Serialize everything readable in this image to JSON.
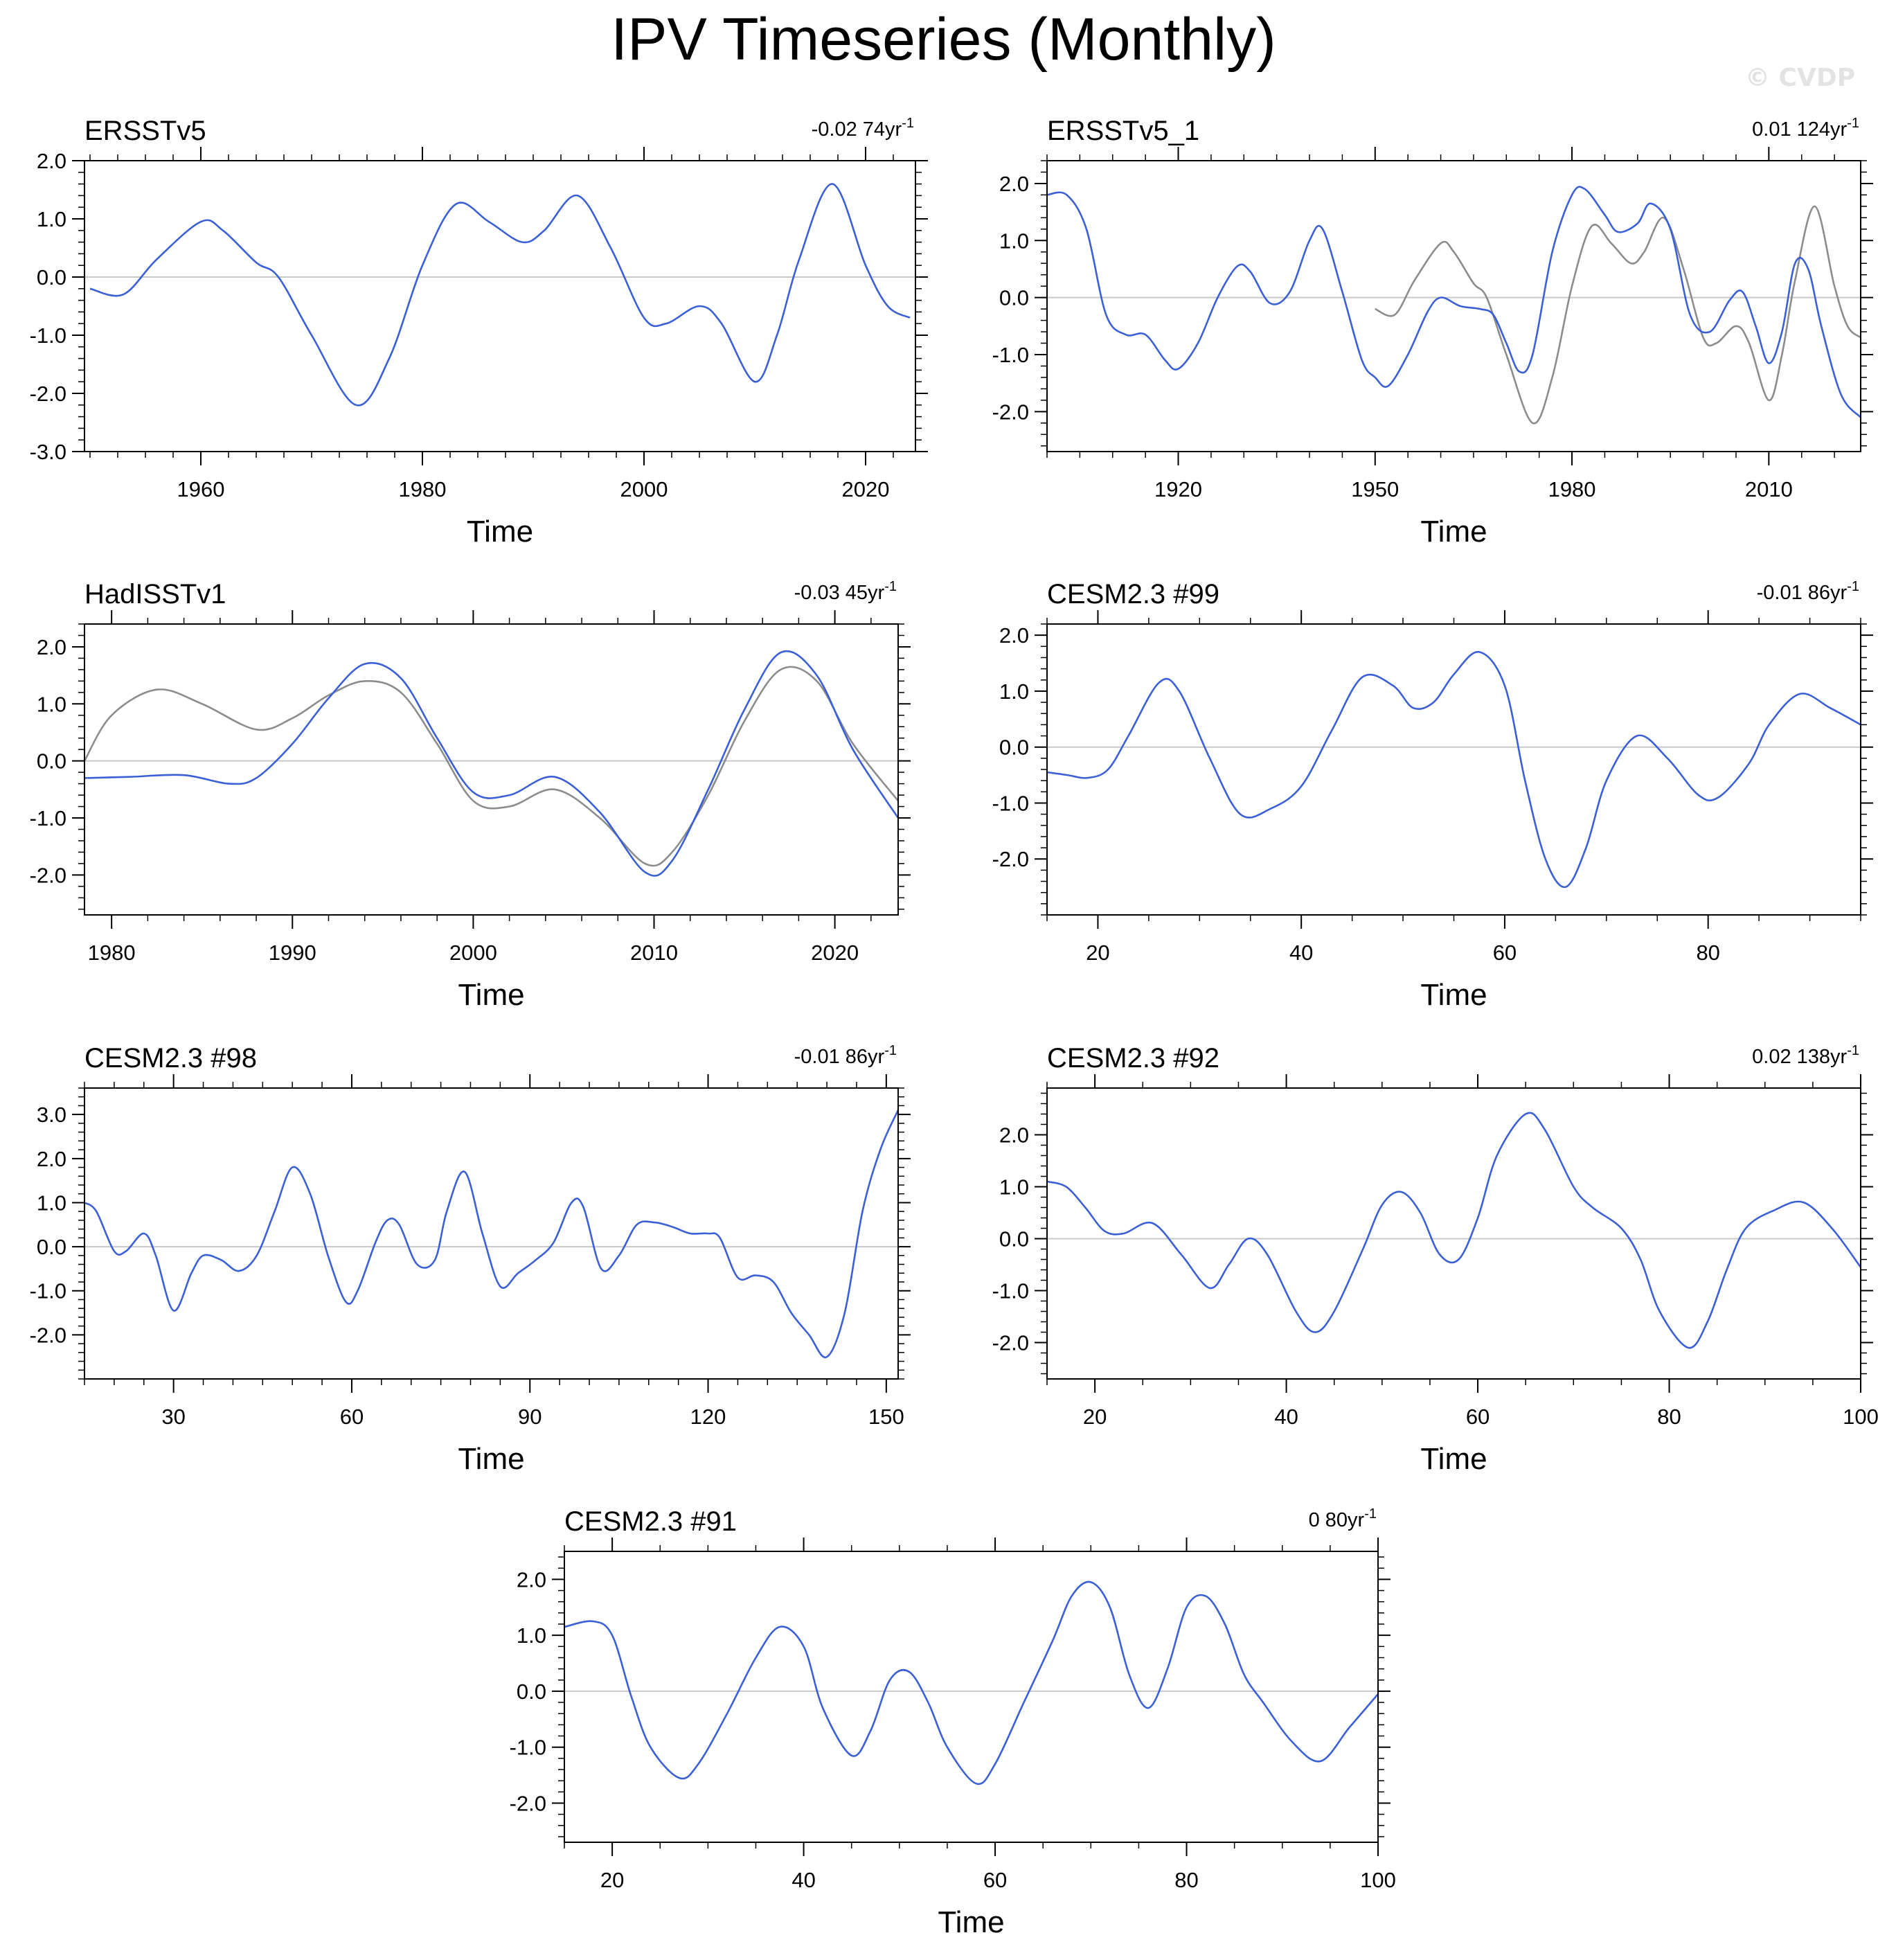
{
  "title": "IPV Timeseries (Monthly)",
  "watermark": "© CVDP",
  "colors": {
    "series": "#3b5fd6",
    "reference": "#8c8c8c",
    "zero_line": "#c8c8c8",
    "axes": "#000000"
  },
  "chart_data": [
    {
      "type": "line",
      "title": "ERSSTv5",
      "trend": "-0.02 74yr",
      "trend_sup": "-1",
      "xlabel": "Time",
      "xlim": [
        1949.5,
        2024.5
      ],
      "ylim": [
        -3.0,
        2.0
      ],
      "xticks": [
        1960,
        1980,
        2000,
        2020
      ],
      "xtick_labels": [
        "1960",
        "1980",
        "2000",
        "2020"
      ],
      "yticks": [
        -3.0,
        -2.0,
        -1.0,
        0.0,
        1.0,
        2.0
      ],
      "ytick_labels": [
        "-3.0",
        "-2.0",
        "-1.0",
        "0.0",
        "1.0",
        "2.0"
      ],
      "series": [
        {
          "role": "main",
          "x": [
            1950,
            1953,
            1956,
            1960,
            1962,
            1965,
            1967,
            1970,
            1974,
            1977,
            1980,
            1983,
            1986,
            1989,
            1991,
            1994,
            1997,
            2000,
            2002,
            2005,
            2007,
            2010,
            2012,
            2014,
            2017,
            2020,
            2022,
            2024
          ],
          "y": [
            -0.2,
            -0.3,
            0.3,
            0.95,
            0.8,
            0.25,
            0.0,
            -1.0,
            -2.2,
            -1.4,
            0.2,
            1.25,
            0.95,
            0.6,
            0.8,
            1.4,
            0.5,
            -0.7,
            -0.8,
            -0.5,
            -0.8,
            -1.8,
            -1.0,
            0.3,
            1.6,
            0.2,
            -0.5,
            -0.7
          ]
        }
      ]
    },
    {
      "type": "line",
      "title": "ERSSTv5_1",
      "trend": "0.01 124yr",
      "trend_sup": "-1",
      "xlabel": "Time",
      "xlim": [
        1900,
        2024
      ],
      "ylim": [
        -2.7,
        2.4
      ],
      "xticks": [
        1920,
        1950,
        1980,
        2010
      ],
      "xtick_labels": [
        "1920",
        "1950",
        "1980",
        "2010"
      ],
      "yticks": [
        -2.0,
        -1.0,
        0.0,
        1.0,
        2.0
      ],
      "ytick_labels": [
        "-2.0",
        "-1.0",
        "0.0",
        "1.0",
        "2.0"
      ],
      "series": [
        {
          "role": "reference",
          "x": [
            1950,
            1953,
            1956,
            1960,
            1962,
            1965,
            1967,
            1970,
            1974,
            1977,
            1980,
            1983,
            1986,
            1989,
            1991,
            1994,
            1997,
            2000,
            2002,
            2005,
            2007,
            2010,
            2012,
            2014,
            2017,
            2020,
            2022,
            2024
          ],
          "y": [
            -0.2,
            -0.3,
            0.3,
            0.95,
            0.8,
            0.25,
            0.0,
            -1.0,
            -2.2,
            -1.4,
            0.2,
            1.25,
            0.95,
            0.6,
            0.8,
            1.4,
            0.5,
            -0.7,
            -0.8,
            -0.5,
            -0.8,
            -1.8,
            -1.0,
            0.3,
            1.6,
            0.2,
            -0.5,
            -0.7
          ]
        },
        {
          "role": "main",
          "x": [
            1900,
            1903,
            1906,
            1909,
            1912,
            1915,
            1918,
            1920,
            1923,
            1926,
            1929,
            1931,
            1934,
            1937,
            1940,
            1942,
            1945,
            1948,
            1950,
            1952,
            1955,
            1958,
            1960,
            1963,
            1966,
            1968,
            1970,
            1972,
            1974,
            1977,
            1980,
            1982,
            1985,
            1987,
            1990,
            1992,
            1995,
            1998,
            2001,
            2004,
            2006,
            2008,
            2010,
            2012,
            2014,
            2016,
            2018,
            2021,
            2024
          ],
          "y": [
            1.8,
            1.8,
            1.2,
            -0.3,
            -0.65,
            -0.65,
            -1.1,
            -1.25,
            -0.8,
            0.0,
            0.55,
            0.45,
            -0.1,
            0.1,
            1.0,
            1.2,
            0.1,
            -1.1,
            -1.4,
            -1.55,
            -1.0,
            -0.25,
            0.0,
            -0.15,
            -0.2,
            -0.3,
            -0.8,
            -1.3,
            -1.0,
            0.8,
            1.8,
            1.9,
            1.45,
            1.15,
            1.3,
            1.65,
            1.2,
            -0.3,
            -0.6,
            -0.05,
            0.1,
            -0.5,
            -1.15,
            -0.6,
            0.6,
            0.5,
            -0.5,
            -1.7,
            -2.1
          ]
        }
      ]
    },
    {
      "type": "line",
      "title": "HadISSTv1",
      "trend": "-0.03 45yr",
      "trend_sup": "-1",
      "xlabel": "Time",
      "xlim": [
        1978.5,
        2023.5
      ],
      "ylim": [
        -2.7,
        2.4
      ],
      "xticks": [
        1980,
        1990,
        2000,
        2010,
        2020
      ],
      "xtick_labels": [
        "1980",
        "1990",
        "2000",
        "2010",
        "2020"
      ],
      "yticks": [
        -2.0,
        -1.0,
        0.0,
        1.0,
        2.0
      ],
      "ytick_labels": [
        "-2.0",
        "-1.0",
        "0.0",
        "1.0",
        "2.0"
      ],
      "series": [
        {
          "role": "reference",
          "x": [
            1978.5,
            1980,
            1982.5,
            1985,
            1988,
            1990,
            1992,
            1994,
            1996,
            1998,
            2000,
            2002,
            2004.5,
            2007,
            2009.5,
            2011,
            2013,
            2015,
            2017,
            2019,
            2021,
            2023.5
          ],
          "y": [
            0.0,
            0.8,
            1.25,
            1.0,
            0.55,
            0.75,
            1.15,
            1.4,
            1.2,
            0.3,
            -0.7,
            -0.8,
            -0.5,
            -1.0,
            -1.8,
            -1.6,
            -0.6,
            0.7,
            1.6,
            1.4,
            0.3,
            -0.7
          ]
        },
        {
          "role": "main",
          "x": [
            1978.5,
            1981,
            1984,
            1986.5,
            1988,
            1990,
            1992,
            1994,
            1996,
            1998,
            2000,
            2002,
            2004.5,
            2007,
            2009.5,
            2011,
            2013,
            2015,
            2017,
            2019,
            2021,
            2023.5
          ],
          "y": [
            -0.3,
            -0.28,
            -0.25,
            -0.4,
            -0.3,
            0.3,
            1.1,
            1.7,
            1.45,
            0.4,
            -0.55,
            -0.6,
            -0.28,
            -0.9,
            -1.95,
            -1.75,
            -0.5,
            0.9,
            1.9,
            1.5,
            0.2,
            -1.0
          ]
        }
      ]
    },
    {
      "type": "line",
      "title": "CESM2.3 #99",
      "trend": "-0.01 86yr",
      "trend_sup": "-1",
      "xlabel": "Time",
      "xlim": [
        15,
        95
      ],
      "ylim": [
        -3.0,
        2.2
      ],
      "xticks": [
        20,
        40,
        60,
        80
      ],
      "xtick_labels": [
        "20",
        "40",
        "60",
        "80"
      ],
      "yticks": [
        -2.0,
        -1.0,
        0.0,
        1.0,
        2.0
      ],
      "ytick_labels": [
        "-2.0",
        "-1.0",
        "0.0",
        "1.0",
        "2.0"
      ],
      "series": [
        {
          "role": "main",
          "x": [
            15,
            17,
            19,
            21,
            23,
            26,
            28,
            31,
            34,
            37,
            40,
            43,
            46,
            49,
            51,
            53,
            55,
            57.5,
            60,
            62,
            64,
            66,
            68,
            70,
            73,
            76,
            79,
            81,
            84,
            86,
            89,
            92,
            95
          ],
          "y": [
            -0.45,
            -0.5,
            -0.55,
            -0.4,
            0.2,
            1.15,
            1.0,
            -0.2,
            -1.2,
            -1.1,
            -0.7,
            0.3,
            1.25,
            1.1,
            0.7,
            0.8,
            1.3,
            1.7,
            1.1,
            -0.6,
            -2.0,
            -2.5,
            -1.8,
            -0.6,
            0.2,
            -0.2,
            -0.85,
            -0.9,
            -0.3,
            0.4,
            0.95,
            0.7,
            0.4
          ]
        }
      ]
    },
    {
      "type": "line",
      "title": "CESM2.3 #98",
      "trend": "-0.01 86yr",
      "trend_sup": "-1",
      "xlabel": "Time",
      "xlim": [
        15,
        152
      ],
      "ylim": [
        -3.0,
        3.6
      ],
      "xticks": [
        30,
        60,
        90,
        120,
        150
      ],
      "xtick_labels": [
        "30",
        "60",
        "90",
        "120",
        "150"
      ],
      "yticks": [
        -2.0,
        -1.0,
        0.0,
        1.0,
        2.0,
        3.0
      ],
      "ytick_labels": [
        "-2.0",
        "-1.0",
        "0.0",
        "1.0",
        "2.0",
        "3.0"
      ],
      "series": [
        {
          "role": "main",
          "x": [
            15,
            17,
            20,
            22,
            25,
            27,
            30,
            33,
            35,
            38,
            41,
            44,
            47,
            50,
            53,
            56,
            59,
            61,
            64,
            66,
            68,
            71,
            74,
            76,
            79,
            82,
            85,
            88,
            91,
            94,
            97,
            99,
            102,
            105,
            108,
            111,
            114,
            117,
            120,
            122,
            125,
            128,
            131,
            134,
            137,
            140,
            143,
            146,
            149,
            152
          ],
          "y": [
            1.0,
            0.8,
            -0.1,
            -0.1,
            0.3,
            -0.2,
            -1.45,
            -0.6,
            -0.2,
            -0.3,
            -0.55,
            -0.2,
            0.8,
            1.8,
            1.2,
            -0.2,
            -1.25,
            -1.0,
            0.1,
            0.6,
            0.5,
            -0.4,
            -0.3,
            0.8,
            1.7,
            0.3,
            -0.9,
            -0.6,
            -0.3,
            0.1,
            1.0,
            0.9,
            -0.5,
            -0.2,
            0.5,
            0.55,
            0.45,
            0.3,
            0.3,
            0.2,
            -0.7,
            -0.65,
            -0.8,
            -1.5,
            -2.0,
            -2.5,
            -1.5,
            0.8,
            2.2,
            3.1
          ]
        }
      ]
    },
    {
      "type": "line",
      "title": "CESM2.3 #92",
      "trend": "0.02 138yr",
      "trend_sup": "-1",
      "xlabel": "Time",
      "xlim": [
        15,
        100
      ],
      "ylim": [
        -2.7,
        2.9
      ],
      "xticks": [
        20,
        40,
        60,
        80,
        100
      ],
      "xtick_labels": [
        "20",
        "40",
        "60",
        "80",
        "100"
      ],
      "yticks": [
        -2.0,
        -1.0,
        0.0,
        1.0,
        2.0
      ],
      "ytick_labels": [
        "-2.0",
        "-1.0",
        "0.0",
        "1.0",
        "2.0"
      ],
      "series": [
        {
          "role": "main",
          "x": [
            15,
            17,
            19,
            21,
            23,
            26,
            29,
            32,
            34,
            36,
            38,
            41,
            43,
            45,
            48,
            50,
            52,
            54,
            56,
            58,
            60,
            62,
            65,
            67,
            70,
            72,
            75,
            77,
            79,
            82,
            84,
            86,
            88,
            91,
            94,
            97,
            100
          ],
          "y": [
            1.1,
            1.0,
            0.6,
            0.15,
            0.1,
            0.3,
            -0.3,
            -0.95,
            -0.5,
            0.0,
            -0.3,
            -1.4,
            -1.8,
            -1.4,
            -0.2,
            0.65,
            0.9,
            0.5,
            -0.3,
            -0.4,
            0.4,
            1.6,
            2.4,
            2.1,
            1.0,
            0.6,
            0.2,
            -0.4,
            -1.4,
            -2.1,
            -1.6,
            -0.6,
            0.2,
            0.55,
            0.7,
            0.2,
            -0.55
          ]
        }
      ]
    },
    {
      "type": "line",
      "title": "CESM2.3 #91",
      "trend": "0 80yr",
      "trend_sup": "-1",
      "xlabel": "Time",
      "xlim": [
        15,
        100
      ],
      "ylim": [
        -2.7,
        2.5
      ],
      "xticks": [
        20,
        40,
        60,
        80,
        100
      ],
      "xtick_labels": [
        "20",
        "40",
        "60",
        "80",
        "100"
      ],
      "yticks": [
        -2.0,
        -1.0,
        0.0,
        1.0,
        2.0
      ],
      "ytick_labels": [
        "-2.0",
        "-1.0",
        "0.0",
        "1.0",
        "2.0"
      ],
      "series": [
        {
          "role": "main",
          "x": [
            15,
            18,
            20,
            22,
            24,
            27,
            29,
            32,
            35,
            37.5,
            40,
            42,
            45,
            47,
            49,
            51,
            53,
            55,
            58,
            60,
            63,
            66,
            68,
            70,
            72,
            74,
            76,
            78,
            80,
            82,
            84,
            86,
            88,
            91,
            94,
            97,
            100
          ],
          "y": [
            1.15,
            1.25,
            1.0,
            -0.1,
            -1.0,
            -1.55,
            -1.3,
            -0.4,
            0.6,
            1.15,
            0.8,
            -0.3,
            -1.15,
            -0.7,
            0.2,
            0.35,
            -0.2,
            -1.0,
            -1.65,
            -1.3,
            -0.2,
            0.9,
            1.7,
            1.95,
            1.5,
            0.3,
            -0.3,
            0.4,
            1.5,
            1.7,
            1.2,
            0.3,
            -0.2,
            -0.9,
            -1.25,
            -0.65,
            -0.05
          ]
        }
      ]
    }
  ]
}
